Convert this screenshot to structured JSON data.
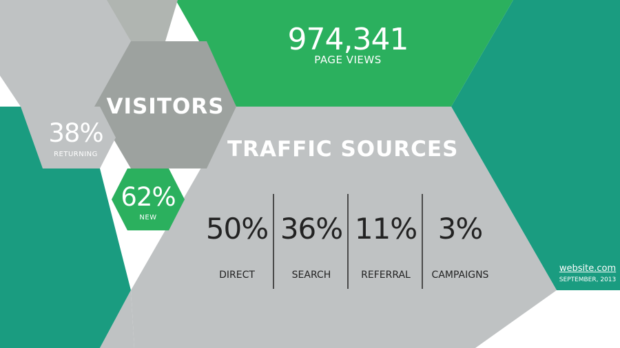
{
  "colors": {
    "teal": "#1a9c80",
    "green": "#2bb05e",
    "gray_light": "#bfc2c3",
    "gray_mid": "#9da29f",
    "gray_sage": "#b0b5b1",
    "text_dark": "#222222"
  },
  "page_views": {
    "value": "974,341",
    "label": "PAGE VIEWS"
  },
  "visitors": {
    "title": "VISITORS",
    "returning": {
      "value": "38%",
      "label": "RETURNING"
    },
    "new": {
      "value": "62%",
      "label": "NEW"
    }
  },
  "traffic": {
    "title": "TRAFFIC SOURCES",
    "items": [
      {
        "value": "50%",
        "label": "DIRECT"
      },
      {
        "value": "36%",
        "label": "SEARCH"
      },
      {
        "value": "11%",
        "label": "REFERRAL"
      },
      {
        "value": "3%",
        "label": "CAMPAIGNS"
      }
    ]
  },
  "footer": {
    "site": "website.com",
    "date": "SEPTEMBER, 2013"
  }
}
